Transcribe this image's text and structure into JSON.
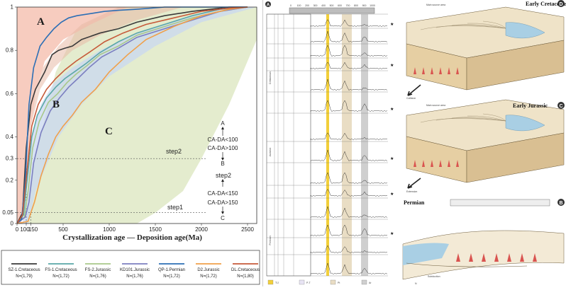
{
  "chart_data": {
    "type": "line",
    "xlabel": "Crystallization age — Deposition age(Ma)",
    "xlim": [
      0,
      2600
    ],
    "ylim": [
      0,
      1
    ],
    "x_ticks": [
      "0",
      "100",
      "150",
      "500",
      "1000",
      "1500",
      "2000",
      "2500"
    ],
    "y_ticks": [
      "0",
      "0.05",
      "0.2",
      "0.3",
      "0.4",
      "0.6",
      "0.8",
      "1"
    ],
    "regions": [
      {
        "label": "A",
        "color": "#f6c6b8"
      },
      {
        "label": "B",
        "color": "#c9d8f0"
      },
      {
        "label": "C",
        "color": "#dfe9c6"
      }
    ],
    "annotations": {
      "top": "A",
      "cond1": "CA-DA<100",
      "cond2": "CA-DA>100",
      "mid": "B",
      "step2_left": "step2",
      "step2_right": "step2",
      "cond3": "CA-DA<150",
      "cond4": "CA-DA>150",
      "bottom": "C",
      "step1": "step1"
    },
    "series": [
      {
        "name": "SZ-1.Cretaceous",
        "n": "N=(1,79)",
        "color": "#3a3a3a",
        "x": [
          0,
          60,
          100,
          150,
          200,
          300,
          380,
          450,
          520,
          600,
          700,
          900,
          1100,
          1300,
          1600,
          1900,
          2100,
          2300,
          2500
        ],
        "y": [
          0,
          0.05,
          0.35,
          0.55,
          0.62,
          0.7,
          0.78,
          0.8,
          0.81,
          0.82,
          0.85,
          0.88,
          0.9,
          0.93,
          0.96,
          0.98,
          0.99,
          1,
          1
        ]
      },
      {
        "name": "FS-1.Cretaceous",
        "n": "N=(1,72)",
        "color": "#5aa7a7",
        "x": [
          0,
          70,
          110,
          160,
          220,
          320,
          420,
          520,
          620,
          750,
          900,
          1100,
          1300,
          1600,
          1900,
          2200,
          2500
        ],
        "y": [
          0,
          0.04,
          0.2,
          0.4,
          0.5,
          0.58,
          0.63,
          0.67,
          0.7,
          0.74,
          0.79,
          0.84,
          0.88,
          0.92,
          0.96,
          0.99,
          1
        ]
      },
      {
        "name": "FS-2.Jurassic",
        "n": "N=(1,76)",
        "color": "#a8c88a",
        "x": [
          0,
          80,
          120,
          170,
          240,
          340,
          440,
          540,
          640,
          760,
          900,
          1100,
          1300,
          1600,
          1900,
          2200,
          2500
        ],
        "y": [
          0,
          0.03,
          0.15,
          0.35,
          0.47,
          0.56,
          0.6,
          0.65,
          0.69,
          0.73,
          0.78,
          0.82,
          0.87,
          0.91,
          0.95,
          0.98,
          1
        ]
      },
      {
        "name": "KD101.Jurassic",
        "n": "N=(1,76)",
        "color": "#7b7fc0",
        "x": [
          0,
          90,
          130,
          180,
          260,
          360,
          460,
          560,
          660,
          780,
          920,
          1100,
          1300,
          1600,
          1900,
          2200,
          2500
        ],
        "y": [
          0,
          0.03,
          0.1,
          0.28,
          0.42,
          0.52,
          0.58,
          0.63,
          0.67,
          0.72,
          0.77,
          0.81,
          0.86,
          0.9,
          0.94,
          0.98,
          1
        ]
      },
      {
        "name": "QP-1.Permian",
        "n": "N=(1,72)",
        "color": "#2d6fb5",
        "x": [
          0,
          50,
          90,
          130,
          180,
          250,
          320,
          400,
          480,
          560,
          650,
          800,
          950,
          1100,
          1300,
          1600,
          2000,
          2500
        ],
        "y": [
          0,
          0.02,
          0.2,
          0.55,
          0.72,
          0.82,
          0.86,
          0.9,
          0.93,
          0.95,
          0.96,
          0.97,
          0.98,
          0.985,
          0.99,
          1,
          1,
          1
        ]
      },
      {
        "name": "D2.Jurassic",
        "n": "N=(1,72)",
        "color": "#f0a04a",
        "x": [
          0,
          120,
          150,
          190,
          260,
          340,
          420,
          500,
          600,
          700,
          850,
          1000,
          1200,
          1400,
          1700,
          2000,
          2300,
          2500
        ],
        "y": [
          0,
          0.01,
          0.05,
          0.1,
          0.22,
          0.32,
          0.4,
          0.45,
          0.5,
          0.56,
          0.62,
          0.7,
          0.78,
          0.85,
          0.91,
          0.96,
          0.99,
          1
        ]
      },
      {
        "name": "DL.Cretaceous",
        "n": "N=(1,80)",
        "color": "#c65a3a",
        "x": [
          0,
          60,
          110,
          160,
          230,
          320,
          420,
          520,
          640,
          780,
          950,
          1150,
          1400,
          1700,
          2000,
          2300,
          2500
        ],
        "y": [
          0,
          0.04,
          0.25,
          0.45,
          0.55,
          0.62,
          0.67,
          0.71,
          0.75,
          0.79,
          0.84,
          0.88,
          0.92,
          0.95,
          0.98,
          0.995,
          1
        ]
      }
    ]
  },
  "middle_panel": {
    "label": "A",
    "periods": [
      "Permian",
      "Jurassic",
      "Cretaceous"
    ],
    "top_scale": [
      "0",
      "100",
      "200",
      "300",
      "400",
      "500",
      "600",
      "700",
      "800",
      "900",
      "1000"
    ],
    "legend_items": [
      "T/J",
      "P-T",
      "Pt",
      "Ar"
    ]
  },
  "right_panel": {
    "d_title": "Early Cretaceous",
    "d_label": "D",
    "c_title": "Early Jurassic",
    "c_label": "C",
    "b_title": "Permian",
    "b_label": "B",
    "main_source": "Main source area",
    "collision": "Collision",
    "extension": "Extension",
    "subduction": "Subduction",
    "north": "N"
  },
  "colors": {
    "region_a": "#f6c6b8",
    "region_b": "#c9d8f0",
    "region_c": "#dfe9c6",
    "yellow_band": "#f2cf3a",
    "beige_band": "#e9ddc4",
    "gray_band": "#cfcfcf"
  }
}
